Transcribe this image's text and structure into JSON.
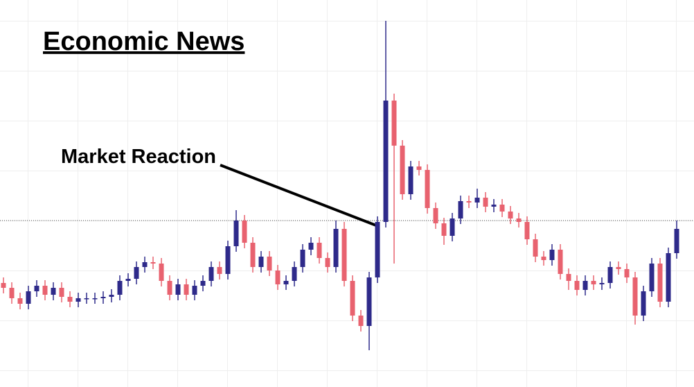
{
  "chart_data": {
    "type": "candlestick",
    "title": "Economic News",
    "annotation": "Market Reaction",
    "ylim": [
      0,
      558
    ],
    "reference_line": 240,
    "colors": {
      "up": "#2e2a8a",
      "down": "#e8626f"
    },
    "open": [
      150,
      143,
      128,
      120,
      138,
      146,
      133,
      143,
      130,
      123,
      128,
      128,
      128,
      130,
      133,
      153,
      156,
      173,
      180,
      178,
      153,
      133,
      148,
      133,
      146,
      153,
      173,
      163,
      203,
      240,
      208,
      173,
      188,
      168,
      148,
      153,
      173,
      198,
      208,
      186,
      173,
      228,
      153,
      103,
      88,
      158,
      238,
      413,
      348,
      278,
      318,
      313,
      258,
      236,
      218,
      243,
      268,
      266,
      273,
      260,
      263,
      253,
      243,
      238,
      213,
      188,
      183,
      198,
      163,
      153,
      140,
      153,
      148,
      150,
      173,
      170,
      158,
      103,
      138,
      178,
      123,
      193
    ],
    "high": [
      158,
      151,
      136,
      146,
      154,
      154,
      151,
      151,
      138,
      136,
      136,
      136,
      138,
      141,
      161,
      164,
      181,
      188,
      188,
      186,
      161,
      156,
      156,
      154,
      161,
      181,
      181,
      211,
      255,
      248,
      216,
      196,
      196,
      176,
      161,
      181,
      206,
      216,
      216,
      194,
      240,
      238,
      161,
      111,
      166,
      246,
      528,
      423,
      356,
      326,
      326,
      321,
      266,
      244,
      251,
      276,
      276,
      286,
      281,
      271,
      271,
      261,
      251,
      246,
      221,
      196,
      206,
      206,
      171,
      161,
      161,
      161,
      158,
      181,
      181,
      178,
      166,
      146,
      186,
      186,
      201,
      240
    ],
    "low": [
      135,
      120,
      112,
      112,
      130,
      125,
      125,
      122,
      115,
      115,
      120,
      120,
      120,
      122,
      125,
      145,
      148,
      165,
      170,
      145,
      125,
      125,
      125,
      125,
      138,
      145,
      155,
      155,
      195,
      200,
      165,
      165,
      160,
      140,
      140,
      145,
      165,
      190,
      178,
      165,
      165,
      145,
      95,
      80,
      53,
      150,
      230,
      178,
      270,
      270,
      305,
      250,
      228,
      205,
      210,
      235,
      258,
      258,
      252,
      252,
      245,
      235,
      230,
      205,
      180,
      175,
      175,
      155,
      140,
      132,
      132,
      140,
      140,
      142,
      162,
      150,
      90,
      95,
      130,
      115,
      115,
      185
    ],
    "close": [
      143,
      128,
      120,
      138,
      146,
      133,
      143,
      130,
      123,
      128,
      128,
      128,
      130,
      133,
      153,
      156,
      173,
      180,
      178,
      153,
      133,
      148,
      133,
      146,
      153,
      173,
      163,
      203,
      240,
      208,
      173,
      188,
      168,
      148,
      153,
      173,
      198,
      208,
      186,
      173,
      228,
      153,
      103,
      88,
      158,
      238,
      413,
      348,
      278,
      318,
      313,
      258,
      236,
      218,
      243,
      268,
      266,
      273,
      260,
      263,
      253,
      243,
      238,
      213,
      188,
      183,
      198,
      163,
      153,
      140,
      153,
      148,
      150,
      173,
      170,
      158,
      103,
      138,
      178,
      123,
      193,
      228
    ]
  }
}
